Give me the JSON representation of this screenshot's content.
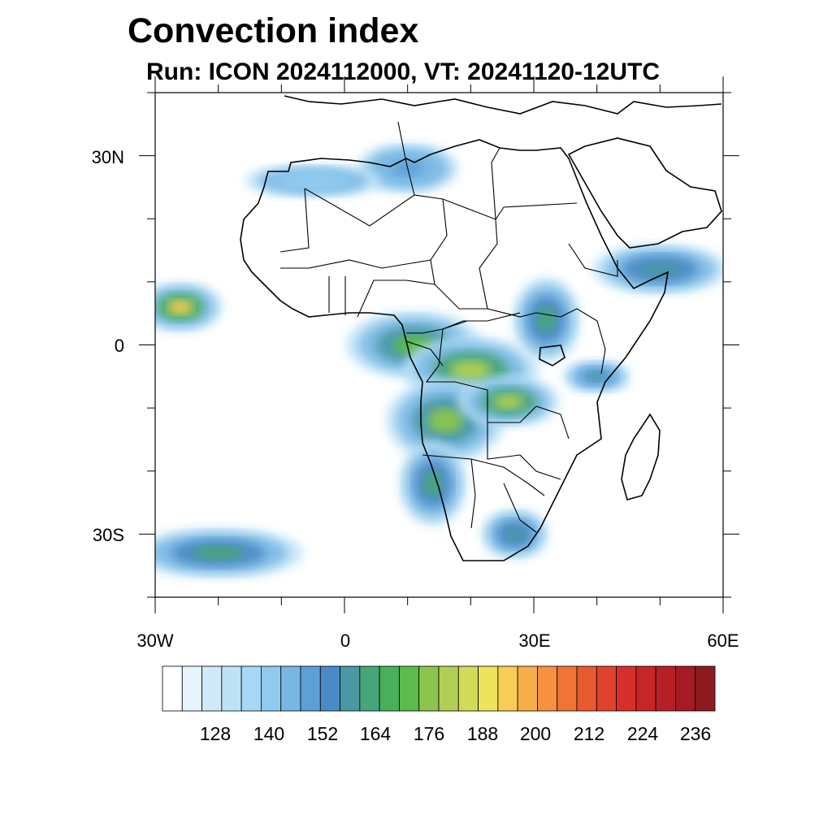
{
  "title": "Convection index",
  "subtitle": "Run: ICON 2024112000,  VT: 20241120-12UTC",
  "map": {
    "lon_range": [
      -30,
      60
    ],
    "lat_range": [
      -40,
      40
    ],
    "lat_labels": [
      {
        "lat": 30,
        "text": "30N"
      },
      {
        "lat": 0,
        "text": "0"
      },
      {
        "lat": -30,
        "text": "30S"
      }
    ],
    "lon_labels": [
      {
        "lon": -30,
        "text": "30W"
      },
      {
        "lon": 0,
        "text": "0"
      },
      {
        "lon": 30,
        "text": "30E"
      },
      {
        "lon": 60,
        "text": "60E"
      }
    ]
  },
  "colorbar": {
    "colors": [
      "#ffffff",
      "#e8f4fb",
      "#d0eaf8",
      "#bde2f6",
      "#a6d9f5",
      "#8fcbee",
      "#78b7e4",
      "#5e9fd6",
      "#4b8ac6",
      "#4a98a4",
      "#47a57a",
      "#48b05a",
      "#5cbb4b",
      "#8cc54e",
      "#b0cf53",
      "#d2db58",
      "#eee35c",
      "#f8cd55",
      "#f7af49",
      "#f59141",
      "#f17338",
      "#e95a31",
      "#e0432d",
      "#d7302b",
      "#c82529",
      "#b71f27",
      "#a51b25",
      "#8e1a1f"
    ],
    "labels": [
      "128",
      "140",
      "152",
      "164",
      "176",
      "188",
      "200",
      "212",
      "224",
      "236"
    ]
  },
  "chart_data": {
    "type": "heatmap",
    "title": "Convection index",
    "subtitle": "Run: ICON 2024112000,  VT: 20241120-12UTC",
    "lon_range": [
      -30,
      60
    ],
    "lat_range": [
      -40,
      40
    ],
    "value_range": [
      116,
      244
    ],
    "legend_ticks": [
      128,
      140,
      152,
      164,
      176,
      188,
      200,
      212,
      224,
      236
    ],
    "regions": [
      {
        "lon": -26,
        "lat": 6,
        "value": 195,
        "rlon": 5,
        "rlat": 3
      },
      {
        "lon": 11,
        "lat": 0,
        "value": 175,
        "rlon": 8,
        "rlat": 4
      },
      {
        "lon": 20,
        "lat": -4,
        "value": 182,
        "rlon": 8,
        "rlat": 4
      },
      {
        "lon": 16,
        "lat": -12,
        "value": 176,
        "rlon": 7,
        "rlat": 5
      },
      {
        "lon": 26,
        "lat": -9,
        "value": 180,
        "rlon": 6,
        "rlat": 3
      },
      {
        "lon": 32,
        "lat": 4,
        "value": 165,
        "rlon": 4,
        "rlat": 5
      },
      {
        "lon": 50,
        "lat": 12,
        "value": 160,
        "rlon": 8,
        "rlat": 3
      },
      {
        "lon": 40,
        "lat": -5,
        "value": 158,
        "rlon": 4,
        "rlat": 2
      },
      {
        "lon": 10,
        "lat": 28,
        "value": 148,
        "rlon": 6,
        "rlat": 3
      },
      {
        "lon": -5,
        "lat": 26,
        "value": 140,
        "rlon": 8,
        "rlat": 2
      },
      {
        "lon": 14,
        "lat": -22,
        "value": 165,
        "rlon": 4,
        "rlat": 5
      },
      {
        "lon": 27,
        "lat": -30,
        "value": 160,
        "rlon": 4,
        "rlat": 3
      },
      {
        "lon": -20,
        "lat": -33,
        "value": 165,
        "rlon": 10,
        "rlat": 3
      }
    ]
  }
}
